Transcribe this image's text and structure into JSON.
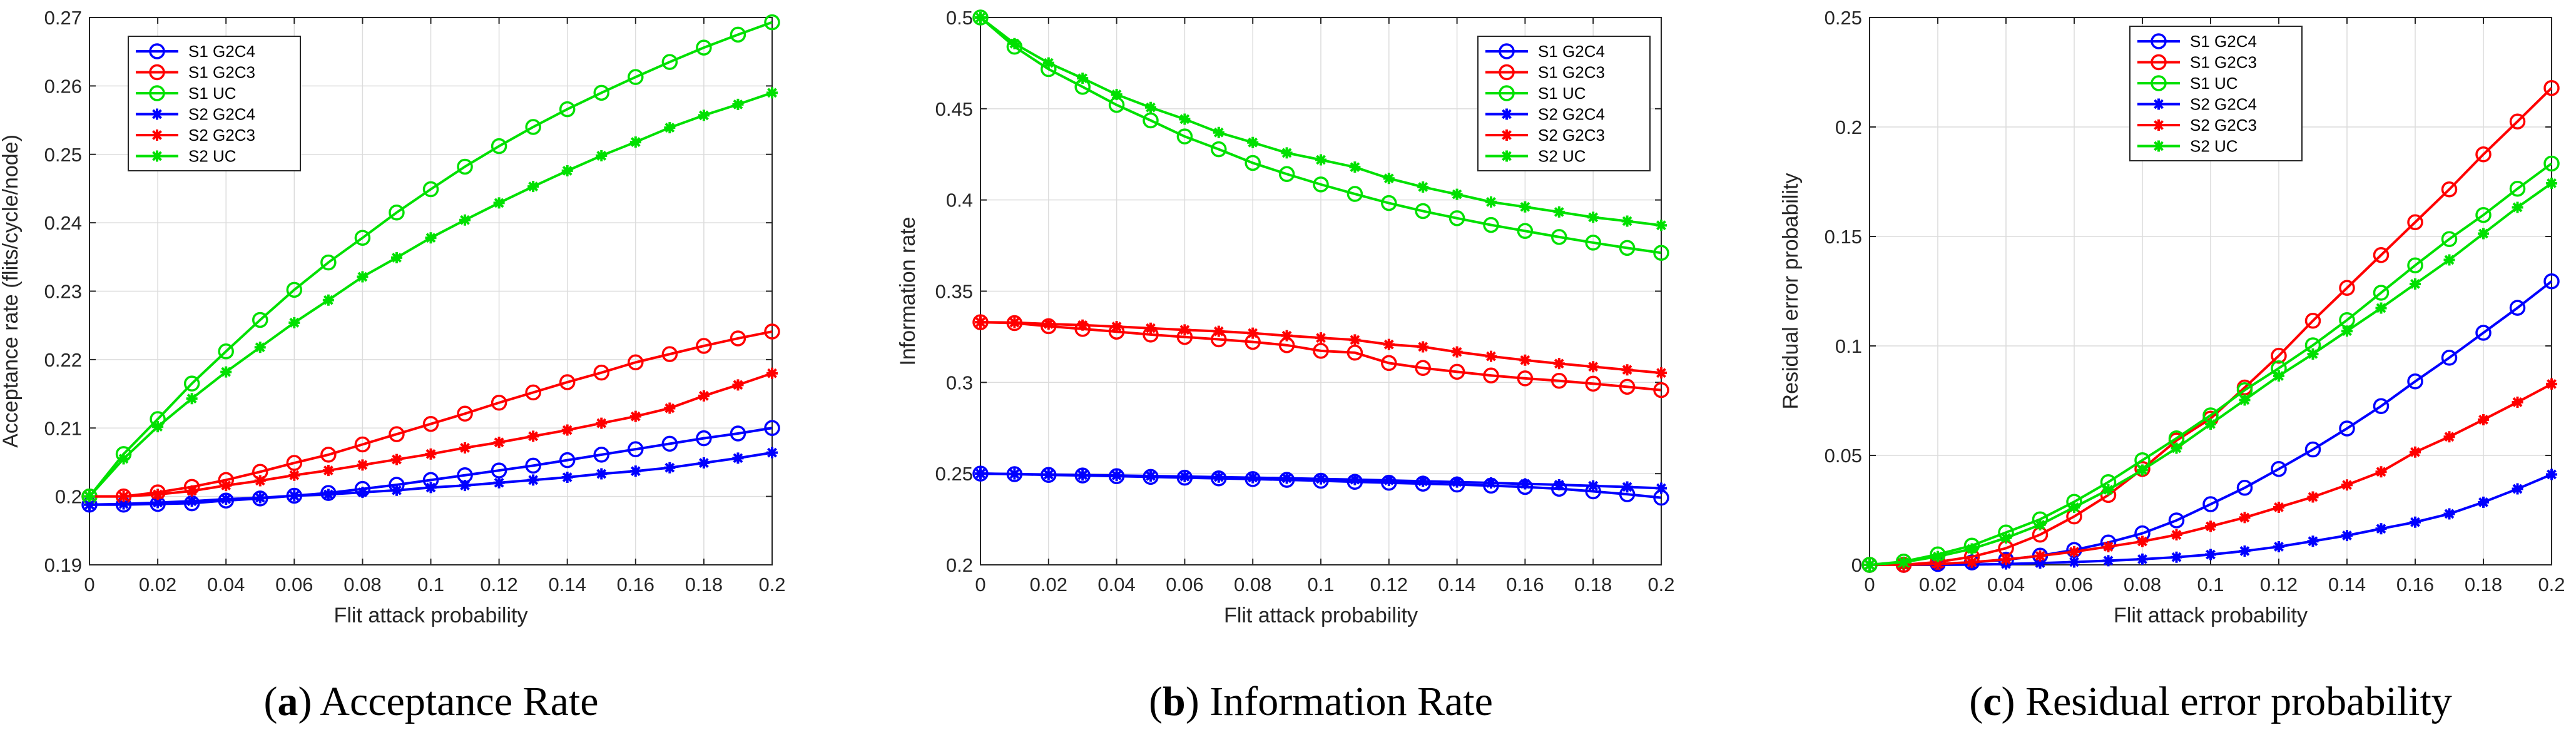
{
  "figure": {
    "x_tick_labels": [
      "0",
      "0.02",
      "0.04",
      "0.06",
      "0.08",
      "0.1",
      "0.12",
      "0.14",
      "0.16",
      "0.18",
      "0.2"
    ]
  },
  "chart_data": [
    {
      "type": "line",
      "id": "a",
      "caption": {
        "letter": "a",
        "text": "Acceptance Rate"
      },
      "xlabel": "Flit attack probability",
      "ylabel": "Acceptance rate (flits/cycle/node)",
      "xlim": [
        0,
        0.2
      ],
      "ylim": [
        0.19,
        0.27
      ],
      "y_ticks": [
        0.19,
        0.2,
        0.21,
        0.22,
        0.23,
        0.24,
        0.25,
        0.26,
        0.27
      ],
      "y_tick_labels": [
        "0.19",
        "0.2",
        "0.21",
        "0.22",
        "0.23",
        "0.24",
        "0.25",
        "0.26",
        "0.27"
      ],
      "grid": true,
      "legend_position": "top-left",
      "x": [
        0,
        0.01,
        0.02,
        0.03,
        0.04,
        0.05,
        0.06,
        0.07,
        0.08,
        0.09,
        0.1,
        0.11,
        0.12,
        0.13,
        0.14,
        0.15,
        0.16,
        0.17,
        0.18,
        0.19,
        0.2
      ],
      "series": [
        {
          "name": "S1 G2C4",
          "color": "#0000ff",
          "marker": "circle",
          "values": [
            0.1988,
            0.1988,
            0.1989,
            0.199,
            0.1994,
            0.1997,
            0.2001,
            0.2005,
            0.2011,
            0.2017,
            0.2024,
            0.2031,
            0.2038,
            0.2045,
            0.2053,
            0.2061,
            0.2069,
            0.2077,
            0.2085,
            0.2092,
            0.21
          ]
        },
        {
          "name": "S1 G2C3",
          "color": "#ff0000",
          "marker": "circle",
          "values": [
            0.2,
            0.2,
            0.2006,
            0.2014,
            0.2024,
            0.2036,
            0.2049,
            0.2061,
            0.2076,
            0.2091,
            0.2106,
            0.2121,
            0.2137,
            0.2152,
            0.2167,
            0.2181,
            0.2196,
            0.2208,
            0.222,
            0.2231,
            0.2241
          ]
        },
        {
          "name": "S1 UC",
          "color": "#00e000",
          "marker": "circle",
          "values": [
            0.2,
            0.2062,
            0.2113,
            0.2165,
            0.2212,
            0.2258,
            0.2302,
            0.2342,
            0.2378,
            0.2415,
            0.2449,
            0.2482,
            0.2512,
            0.254,
            0.2566,
            0.259,
            0.2613,
            0.2635,
            0.2656,
            0.2675,
            0.2693
          ]
        },
        {
          "name": "S2 G2C4",
          "color": "#0000ff",
          "marker": "star",
          "values": [
            0.1988,
            0.1989,
            0.1991,
            0.1993,
            0.1996,
            0.1998,
            0.2001,
            0.2003,
            0.2006,
            0.2009,
            0.2013,
            0.2016,
            0.202,
            0.2024,
            0.2028,
            0.2033,
            0.2037,
            0.2042,
            0.2049,
            0.2056,
            0.2064
          ]
        },
        {
          "name": "S2 G2C3",
          "color": "#ff0000",
          "marker": "star",
          "values": [
            0.2,
            0.2,
            0.2003,
            0.2008,
            0.2016,
            0.2023,
            0.2031,
            0.2038,
            0.2046,
            0.2054,
            0.2062,
            0.2071,
            0.2079,
            0.2088,
            0.2097,
            0.2107,
            0.2117,
            0.2129,
            0.2147,
            0.2163,
            0.218
          ]
        },
        {
          "name": "S2 UC",
          "color": "#00e000",
          "marker": "star",
          "values": [
            0.2,
            0.2055,
            0.2102,
            0.2143,
            0.2182,
            0.2218,
            0.2254,
            0.2287,
            0.2321,
            0.2349,
            0.2378,
            0.2404,
            0.2429,
            0.2453,
            0.2476,
            0.2498,
            0.2518,
            0.2539,
            0.2557,
            0.2573,
            0.259
          ]
        }
      ]
    },
    {
      "type": "line",
      "id": "b",
      "caption": {
        "letter": "b",
        "text": "Information Rate"
      },
      "xlabel": "Flit attack probability",
      "ylabel": "Information rate",
      "xlim": [
        0,
        0.2
      ],
      "ylim": [
        0.2,
        0.5
      ],
      "y_ticks": [
        0.2,
        0.25,
        0.3,
        0.35,
        0.4,
        0.45,
        0.5
      ],
      "y_tick_labels": [
        "0.2",
        "0.25",
        "0.3",
        "0.35",
        "0.4",
        "0.45",
        "0.5"
      ],
      "grid": true,
      "legend_position": "top-right",
      "x": [
        0,
        0.01,
        0.02,
        0.03,
        0.04,
        0.05,
        0.06,
        0.07,
        0.08,
        0.09,
        0.1,
        0.11,
        0.12,
        0.13,
        0.14,
        0.15,
        0.16,
        0.17,
        0.18,
        0.19,
        0.2
      ],
      "series": [
        {
          "name": "S1 G2C4",
          "color": "#0000ff",
          "marker": "circle",
          "values": [
            0.25,
            0.2497,
            0.2493,
            0.249,
            0.2486,
            0.2482,
            0.2478,
            0.2474,
            0.247,
            0.2466,
            0.2461,
            0.2455,
            0.245,
            0.2445,
            0.244,
            0.2434,
            0.2427,
            0.2417,
            0.2403,
            0.2387,
            0.2368
          ]
        },
        {
          "name": "S1 G2C3",
          "color": "#ff0000",
          "marker": "circle",
          "values": [
            0.333,
            0.3325,
            0.3308,
            0.3293,
            0.3278,
            0.3262,
            0.3249,
            0.3236,
            0.3222,
            0.3204,
            0.3173,
            0.3163,
            0.3106,
            0.3079,
            0.3058,
            0.3038,
            0.3022,
            0.3009,
            0.2993,
            0.2976,
            0.2958
          ]
        },
        {
          "name": "S1 UC",
          "color": "#00e000",
          "marker": "circle",
          "values": [
            0.5,
            0.484,
            0.4717,
            0.462,
            0.4521,
            0.4436,
            0.4348,
            0.4278,
            0.4203,
            0.4142,
            0.4085,
            0.4033,
            0.3983,
            0.3939,
            0.39,
            0.3863,
            0.383,
            0.3797,
            0.3766,
            0.3737,
            0.371
          ]
        },
        {
          "name": "S2 G2C4",
          "color": "#0000ff",
          "marker": "star",
          "values": [
            0.25,
            0.2498,
            0.2495,
            0.2492,
            0.249,
            0.2487,
            0.2484,
            0.2481,
            0.2478,
            0.2475,
            0.2471,
            0.2467,
            0.2463,
            0.2458,
            0.2454,
            0.2449,
            0.2444,
            0.2439,
            0.2433,
            0.2427,
            0.242
          ]
        },
        {
          "name": "S2 G2C3",
          "color": "#ff0000",
          "marker": "star",
          "values": [
            0.333,
            0.3328,
            0.332,
            0.3314,
            0.3306,
            0.3297,
            0.3288,
            0.328,
            0.327,
            0.3256,
            0.3244,
            0.3233,
            0.3208,
            0.3195,
            0.3167,
            0.3143,
            0.3122,
            0.3103,
            0.3086,
            0.3069,
            0.3052
          ]
        },
        {
          "name": "S2 UC",
          "color": "#00e000",
          "marker": "star",
          "values": [
            0.5,
            0.4857,
            0.4751,
            0.4667,
            0.4578,
            0.4507,
            0.4443,
            0.437,
            0.4315,
            0.4258,
            0.422,
            0.418,
            0.4118,
            0.4071,
            0.4031,
            0.3989,
            0.3962,
            0.3934,
            0.3905,
            0.3884,
            0.3861
          ]
        }
      ]
    },
    {
      "type": "line",
      "id": "c",
      "caption": {
        "letter": "c",
        "text": "Residual error probability"
      },
      "xlabel": "Flit attack probability",
      "ylabel": "Residual error probability",
      "xlim": [
        0,
        0.2
      ],
      "ylim": [
        0,
        0.25
      ],
      "y_ticks": [
        0,
        0.05,
        0.1,
        0.15,
        0.2,
        0.25
      ],
      "y_tick_labels": [
        "0",
        "0.05",
        "0.1",
        "0.15",
        "0.2",
        "0.25"
      ],
      "grid": true,
      "legend_position": "top-center",
      "x": [
        0,
        0.01,
        0.02,
        0.03,
        0.04,
        0.05,
        0.06,
        0.07,
        0.08,
        0.09,
        0.1,
        0.11,
        0.12,
        0.13,
        0.14,
        0.15,
        0.16,
        0.17,
        0.18,
        0.19,
        0.2
      ],
      "series": [
        {
          "name": "S1 G2C4",
          "color": "#0000ff",
          "marker": "circle",
          "values": [
            0,
            0,
            0.0004,
            0.0011,
            0.0023,
            0.0042,
            0.0068,
            0.0102,
            0.0144,
            0.0203,
            0.0277,
            0.0352,
            0.0438,
            0.0527,
            0.0623,
            0.0725,
            0.0838,
            0.0946,
            0.106,
            0.1174,
            0.1295
          ]
        },
        {
          "name": "S1 G2C3",
          "color": "#ff0000",
          "marker": "circle",
          "values": [
            0,
            0,
            0.0013,
            0.0037,
            0.0076,
            0.0138,
            0.0221,
            0.0319,
            0.0438,
            0.0568,
            0.0668,
            0.081,
            0.0955,
            0.1115,
            0.1265,
            0.1415,
            0.1565,
            0.1715,
            0.1875,
            0.2025,
            0.2178
          ]
        },
        {
          "name": "S1 UC",
          "color": "#00e000",
          "marker": "circle",
          "values": [
            0,
            0.0015,
            0.0048,
            0.0088,
            0.0148,
            0.0208,
            0.0288,
            0.0378,
            0.0478,
            0.0578,
            0.0683,
            0.0798,
            0.0898,
            0.1003,
            0.1118,
            0.1243,
            0.1368,
            0.1488,
            0.1598,
            0.1718,
            0.1833
          ]
        },
        {
          "name": "S2 G2C4",
          "color": "#0000ff",
          "marker": "star",
          "values": [
            0,
            0,
            0,
            0.0001,
            0.0004,
            0.0008,
            0.0013,
            0.0019,
            0.0026,
            0.0035,
            0.0047,
            0.0063,
            0.0083,
            0.0108,
            0.0134,
            0.0165,
            0.0195,
            0.0233,
            0.0286,
            0.0347,
            0.0413
          ]
        },
        {
          "name": "S2 G2C3",
          "color": "#ff0000",
          "marker": "star",
          "values": [
            0,
            0,
            0.0004,
            0.0012,
            0.0025,
            0.0041,
            0.006,
            0.0083,
            0.0107,
            0.0137,
            0.0176,
            0.0216,
            0.0263,
            0.031,
            0.0365,
            0.0425,
            0.0515,
            0.0585,
            0.0663,
            0.0743,
            0.0826
          ]
        },
        {
          "name": "S2 UC",
          "color": "#00e000",
          "marker": "star",
          "values": [
            0,
            0.0012,
            0.0038,
            0.0073,
            0.0123,
            0.0183,
            0.0263,
            0.0343,
            0.0433,
            0.0533,
            0.0643,
            0.0753,
            0.0863,
            0.0963,
            0.1068,
            0.1173,
            0.1283,
            0.1393,
            0.1513,
            0.1633,
            0.1743
          ]
        }
      ]
    }
  ]
}
